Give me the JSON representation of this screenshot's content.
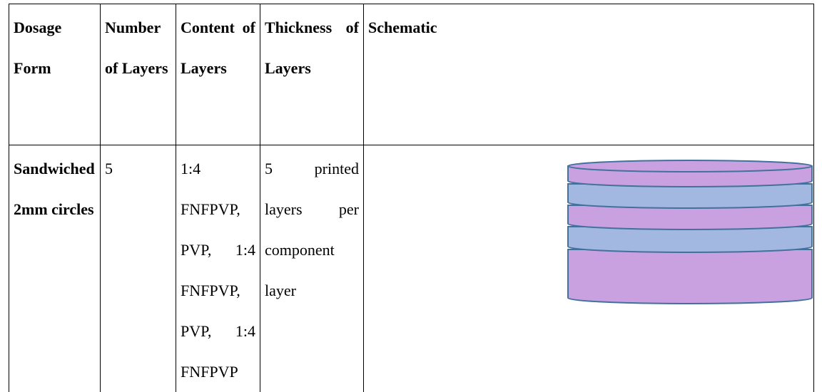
{
  "table": {
    "header": [
      "Dosage Form",
      "Number of Layers",
      "Content of Layers",
      "Thickness of Layers",
      "Schematic"
    ],
    "rows": [
      [
        "Sandwiched 2mm circles",
        "5",
        "1:4 FNFPVP, PVP, 1:4 FNFPVP, PVP, 1:4 FNFPVP",
        "5 printed layers per component layer"
      ]
    ]
  }
}
